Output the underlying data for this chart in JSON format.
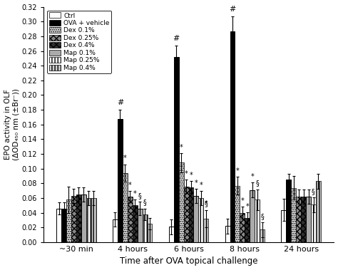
{
  "time_points": [
    "~30 min",
    "4 hours",
    "6 hours",
    "8 hours",
    "24 hours"
  ],
  "series_labels": [
    "Ctrl",
    "OVA + vehicle",
    "Dex 0.1%",
    "Dex 0.25%",
    "Dex 0.4%",
    "Map 0.1%",
    "Map 0.25%",
    "Map 0.4%"
  ],
  "bar_values": [
    [
      0.046,
      0.031,
      0.021,
      0.022,
      0.044
    ],
    [
      0.046,
      0.168,
      0.252,
      0.287,
      0.085
    ],
    [
      0.058,
      0.094,
      0.108,
      0.077,
      0.074
    ],
    [
      0.063,
      0.062,
      0.076,
      0.04,
      0.062
    ],
    [
      0.065,
      0.05,
      0.075,
      0.033,
      0.062
    ],
    [
      0.065,
      0.046,
      0.063,
      0.071,
      0.062
    ],
    [
      0.06,
      0.038,
      0.06,
      0.058,
      0.051
    ],
    [
      0.06,
      0.025,
      0.032,
      0.017,
      0.083
    ]
  ],
  "bar_errors": [
    [
      0.008,
      0.01,
      0.01,
      0.01,
      0.015
    ],
    [
      0.008,
      0.012,
      0.015,
      0.02,
      0.008
    ],
    [
      0.018,
      0.012,
      0.013,
      0.012,
      0.016
    ],
    [
      0.01,
      0.008,
      0.009,
      0.008,
      0.01
    ],
    [
      0.01,
      0.008,
      0.008,
      0.008,
      0.01
    ],
    [
      0.01,
      0.009,
      0.01,
      0.01,
      0.01
    ],
    [
      0.01,
      0.008,
      0.01,
      0.014,
      0.01
    ],
    [
      0.01,
      0.008,
      0.012,
      0.01,
      0.01
    ]
  ],
  "ylim": [
    0.0,
    0.32
  ],
  "yticks": [
    0.0,
    0.02,
    0.04,
    0.06,
    0.08,
    0.1,
    0.12,
    0.14,
    0.16,
    0.18,
    0.2,
    0.22,
    0.24,
    0.26,
    0.28,
    0.3,
    0.32
  ],
  "ylabel": "EPO activity in OLF\n(ΔOD₄₅₀ nm (±Br⁻))",
  "xlabel": "Time after OVA topical challenge",
  "background_color": "white",
  "figsize": [
    4.74,
    3.79
  ],
  "dpi": 100
}
